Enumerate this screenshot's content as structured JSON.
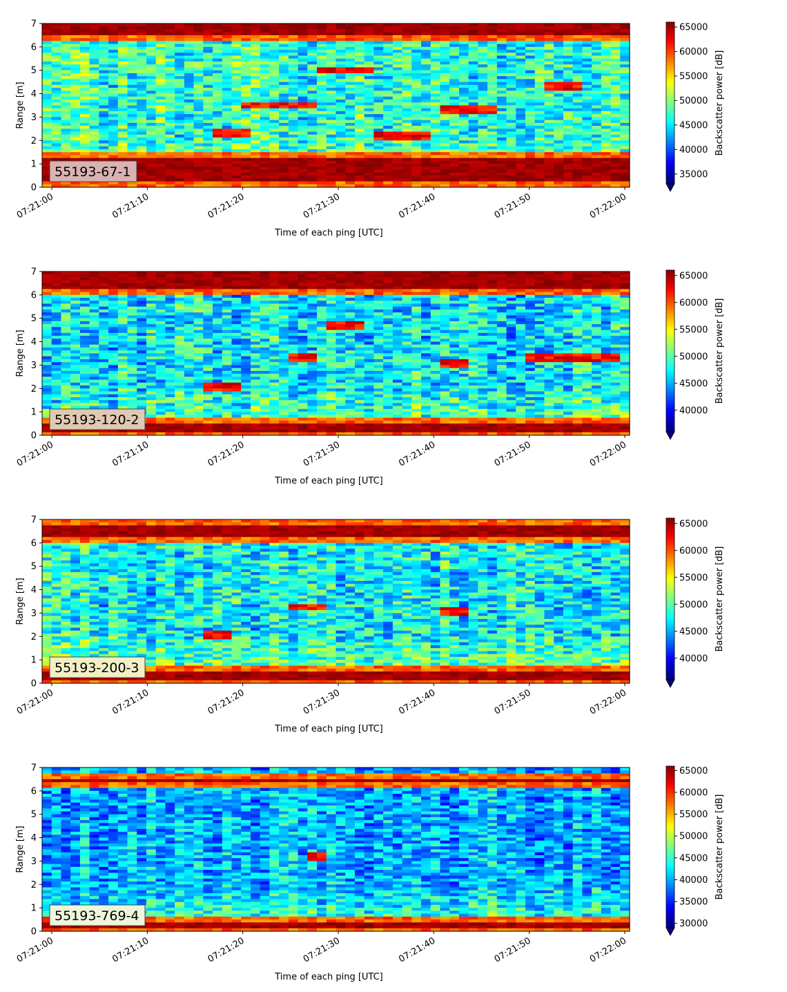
{
  "figure": {
    "x_tick_labels": [
      "07:21:00",
      "07:21:10",
      "07:21:20",
      "07:21:30",
      "07:21:40",
      "07:21:50",
      "07:22:00"
    ],
    "xlabel": "Time of each ping [UTC]",
    "ylabel": "Range [m]",
    "colorbar_label": "Backscatter power [dB]",
    "colormap": "jet"
  },
  "chart_data": [
    {
      "type": "heatmap",
      "panel_label": "55193-67-1",
      "panel_label_bg": "#d9b2b2",
      "xlabel": "Time of each ping [UTC]",
      "ylabel": "Range [m]",
      "x_range": [
        "07:21:00",
        "07:22:00"
      ],
      "ylim": [
        0,
        7
      ],
      "y_ticks": [
        0,
        1,
        2,
        3,
        4,
        5,
        6,
        7
      ],
      "colorbar": {
        "label": "Backscatter power [dB]",
        "ticks": [
          35000,
          40000,
          45000,
          50000,
          55000,
          60000,
          65000
        ],
        "range": [
          33000,
          66000
        ]
      },
      "features": [
        {
          "type": "band",
          "range_m": [
            0.2,
            1.2
          ],
          "level": "high"
        },
        {
          "type": "band",
          "range_m": [
            6.45,
            7.0
          ],
          "level": "high"
        },
        {
          "type": "echo",
          "time": [
            "07:21:17",
            "07:21:21"
          ],
          "range_m": 2.35
        },
        {
          "type": "echo",
          "time": [
            "07:21:20",
            "07:21:28"
          ],
          "range_m": 3.5
        },
        {
          "type": "echo",
          "time": [
            "07:21:34",
            "07:21:40"
          ],
          "range_m": 2.2
        },
        {
          "type": "echo",
          "time": [
            "07:21:41",
            "07:21:47"
          ],
          "range_m": 3.3
        },
        {
          "type": "echo",
          "time": [
            "07:21:28",
            "07:21:34"
          ],
          "range_m": 5.0
        },
        {
          "type": "echo",
          "time": [
            "07:21:52",
            "07:21:56"
          ],
          "range_m": 4.3
        }
      ]
    },
    {
      "type": "heatmap",
      "panel_label": "55193-120-2",
      "panel_label_bg": "#e0c9b3",
      "xlabel": "Time of each ping [UTC]",
      "ylabel": "Range [m]",
      "x_range": [
        "07:21:00",
        "07:22:00"
      ],
      "ylim": [
        0,
        7
      ],
      "y_ticks": [
        0,
        1,
        2,
        3,
        4,
        5,
        6,
        7
      ],
      "colorbar": {
        "label": "Backscatter power [dB]",
        "ticks": [
          40000,
          45000,
          50000,
          55000,
          60000,
          65000
        ],
        "range": [
          36000,
          66000
        ]
      },
      "features": [
        {
          "type": "band",
          "range_m": [
            0.1,
            0.5
          ],
          "level": "high"
        },
        {
          "type": "band",
          "range_m": [
            6.3,
            7.0
          ],
          "level": "high"
        },
        {
          "type": "echo",
          "time": [
            "07:21:16",
            "07:21:20"
          ],
          "range_m": 2.1
        },
        {
          "type": "echo",
          "time": [
            "07:21:25",
            "07:21:28"
          ],
          "range_m": 3.3
        },
        {
          "type": "echo",
          "time": [
            "07:21:41",
            "07:21:44"
          ],
          "range_m": 3.1
        },
        {
          "type": "echo",
          "time": [
            "07:21:29",
            "07:21:33"
          ],
          "range_m": 4.7
        },
        {
          "type": "echo",
          "time": [
            "07:21:50",
            "07:22:00"
          ],
          "range_m": 3.3
        }
      ]
    },
    {
      "type": "heatmap",
      "panel_label": "55193-200-3",
      "panel_label_bg": "#f2efc6",
      "xlabel": "Time of each ping [UTC]",
      "ylabel": "Range [m]",
      "x_range": [
        "07:21:00",
        "07:22:00"
      ],
      "ylim": [
        0,
        7
      ],
      "y_ticks": [
        0,
        1,
        2,
        3,
        4,
        5,
        6,
        7
      ],
      "colorbar": {
        "label": "Backscatter power [dB]",
        "ticks": [
          40000,
          45000,
          50000,
          55000,
          60000,
          65000
        ],
        "range": [
          36000,
          66000
        ]
      },
      "features": [
        {
          "type": "band",
          "range_m": [
            0.1,
            0.45
          ],
          "level": "high"
        },
        {
          "type": "band",
          "range_m": [
            6.3,
            6.8
          ],
          "level": "high"
        },
        {
          "type": "echo",
          "time": [
            "07:21:16",
            "07:21:19"
          ],
          "range_m": 2.1
        },
        {
          "type": "echo",
          "time": [
            "07:21:25",
            "07:21:29"
          ],
          "range_m": 3.25
        },
        {
          "type": "echo",
          "time": [
            "07:21:41",
            "07:21:44"
          ],
          "range_m": 3.05
        }
      ]
    },
    {
      "type": "heatmap",
      "panel_label": "55193-769-4",
      "panel_label_bg": "#eef6dc",
      "xlabel": "Time of each ping [UTC]",
      "ylabel": "Range [m]",
      "x_range": [
        "07:21:00",
        "07:22:00"
      ],
      "ylim": [
        0,
        7
      ],
      "y_ticks": [
        0,
        1,
        2,
        3,
        4,
        5,
        6,
        7
      ],
      "colorbar": {
        "label": "Backscatter power [dB]",
        "ticks": [
          30000,
          35000,
          40000,
          45000,
          50000,
          55000,
          60000,
          65000
        ],
        "range": [
          29000,
          66000
        ]
      },
      "features": [
        {
          "type": "band",
          "range_m": [
            0.15,
            0.35
          ],
          "level": "high"
        },
        {
          "type": "band",
          "range_m": [
            6.35,
            6.55
          ],
          "level": "high"
        },
        {
          "type": "echo",
          "time": [
            "07:21:27",
            "07:21:29"
          ],
          "range_m": 3.2
        }
      ]
    }
  ]
}
